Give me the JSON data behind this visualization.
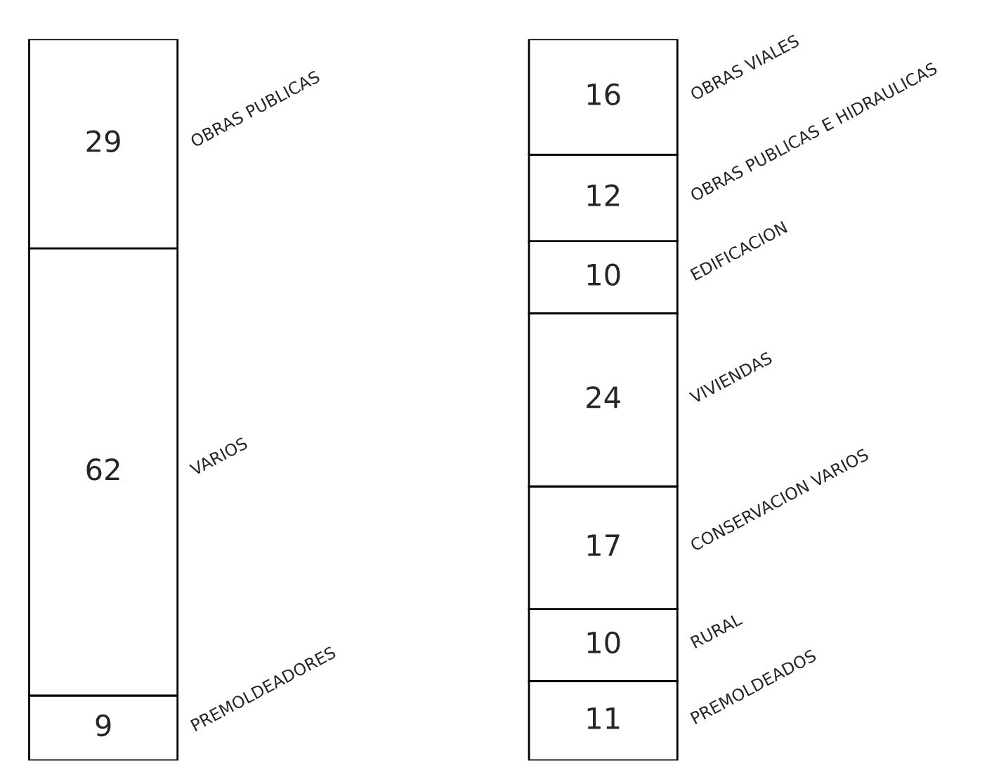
{
  "chart_data": [
    {
      "type": "bar",
      "stacked": true,
      "categories": [
        null
      ],
      "ylim": [
        0,
        100
      ],
      "tick_labels": false,
      "data_labels": true,
      "series": [
        {
          "name": "PREMOLDEADORES",
          "color": "#ffffff",
          "values": [
            9
          ]
        },
        {
          "name": "VARIOS",
          "color": "#ffffff",
          "values": [
            62
          ]
        },
        {
          "name": "OBRAS PUBLICAS",
          "color": "#ffffff",
          "values": [
            29
          ]
        }
      ]
    },
    {
      "type": "bar",
      "stacked": true,
      "categories": [
        null
      ],
      "ylim": [
        0,
        100
      ],
      "tick_labels": false,
      "data_labels": true,
      "series": [
        {
          "name": "PREMOLDEADOS",
          "color": "#ffffff",
          "values": [
            11
          ]
        },
        {
          "name": "RURAL",
          "color": "#ffffff",
          "values": [
            10
          ]
        },
        {
          "name": "CONSERVACION VARIOS",
          "color": "#ffffff",
          "values": [
            17
          ]
        },
        {
          "name": "VIVIENDAS",
          "color": "#ffffff",
          "values": [
            24
          ]
        },
        {
          "name": "EDIFICACION",
          "color": "#ffffff",
          "values": [
            10
          ]
        },
        {
          "name": "OBRAS PUBLICAS E HIDRAULICAS",
          "color": "#ffffff",
          "values": [
            12
          ]
        },
        {
          "name": "OBRAS VIALES",
          "color": "#ffffff",
          "values": [
            16
          ]
        }
      ]
    }
  ]
}
